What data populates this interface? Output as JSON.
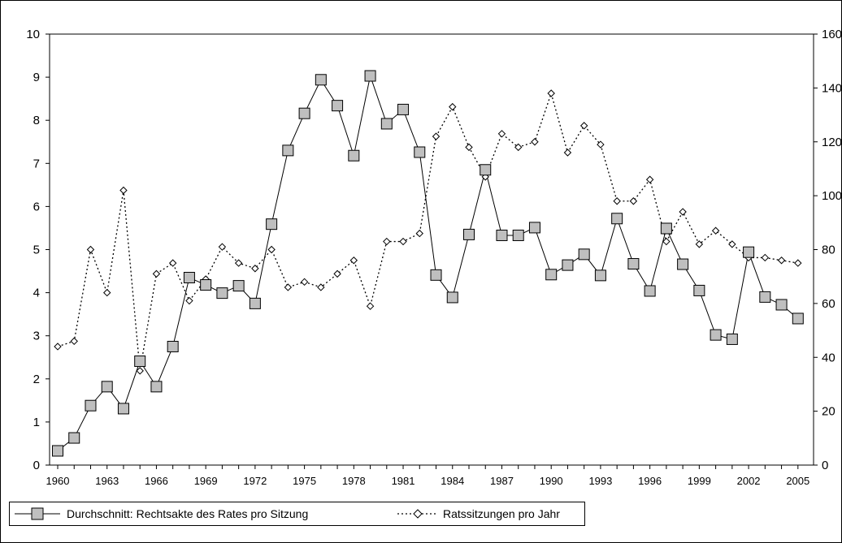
{
  "colors": {
    "marker_fill": "#bfbfbf",
    "line": "#000000",
    "background": "#ffffff"
  },
  "chart_data": {
    "type": "line",
    "title": "",
    "xlabel": "",
    "ylabel": "",
    "x": [
      1960,
      1961,
      1962,
      1963,
      1964,
      1965,
      1966,
      1967,
      1968,
      1969,
      1970,
      1971,
      1972,
      1973,
      1974,
      1975,
      1976,
      1977,
      1978,
      1979,
      1980,
      1981,
      1982,
      1983,
      1984,
      1985,
      1986,
      1987,
      1988,
      1989,
      1990,
      1991,
      1992,
      1993,
      1994,
      1995,
      1996,
      1997,
      1998,
      1999,
      2000,
      2001,
      2002,
      2003,
      2004,
      2005
    ],
    "x_tick_labels": [
      "1960",
      "1963",
      "1966",
      "1969",
      "1972",
      "1975",
      "1978",
      "1981",
      "1984",
      "1987",
      "1990",
      "1993",
      "1996",
      "1999",
      "2002",
      "2005"
    ],
    "y_left": {
      "ylim": [
        0,
        10
      ],
      "ticks": [
        "0",
        "1",
        "2",
        "3",
        "4",
        "5",
        "6",
        "7",
        "8",
        "9",
        "10"
      ]
    },
    "y_right": {
      "ylim": [
        0,
        160
      ],
      "ticks": [
        "0",
        "20",
        "40",
        "60",
        "80",
        "100",
        "120",
        "140",
        "160"
      ]
    },
    "grid": false,
    "legend_placement": "bottom",
    "series": [
      {
        "name": "Durchschnitt: Rechtsakte des Rates pro Sitzung",
        "axis": "left",
        "marker": "square",
        "line": "solid",
        "values": [
          0.33,
          0.63,
          1.38,
          1.82,
          1.31,
          2.41,
          1.82,
          2.75,
          4.35,
          4.18,
          3.99,
          4.16,
          3.75,
          5.59,
          7.3,
          8.16,
          8.94,
          8.34,
          7.18,
          9.03,
          7.92,
          8.25,
          7.26,
          4.41,
          3.89,
          5.35,
          6.85,
          5.33,
          5.33,
          5.51,
          4.42,
          4.64,
          4.89,
          4.4,
          5.72,
          4.67,
          4.04,
          5.49,
          4.66,
          4.05,
          3.02,
          2.92,
          4.94,
          3.9,
          3.72,
          3.4
        ]
      },
      {
        "name": "Ratssitzungen pro Jahr",
        "axis": "right",
        "marker": "diamond",
        "line": "dotted",
        "values": [
          44,
          46,
          80,
          64,
          102,
          35,
          71,
          75,
          61,
          69,
          81,
          75,
          73,
          80,
          66,
          68,
          66,
          71,
          76,
          59,
          83,
          83,
          86,
          122,
          133,
          118,
          107,
          123,
          118,
          120,
          138,
          116,
          126,
          119,
          98,
          98,
          106,
          83,
          94,
          82,
          87,
          82,
          77,
          77,
          76,
          75
        ]
      }
    ]
  }
}
